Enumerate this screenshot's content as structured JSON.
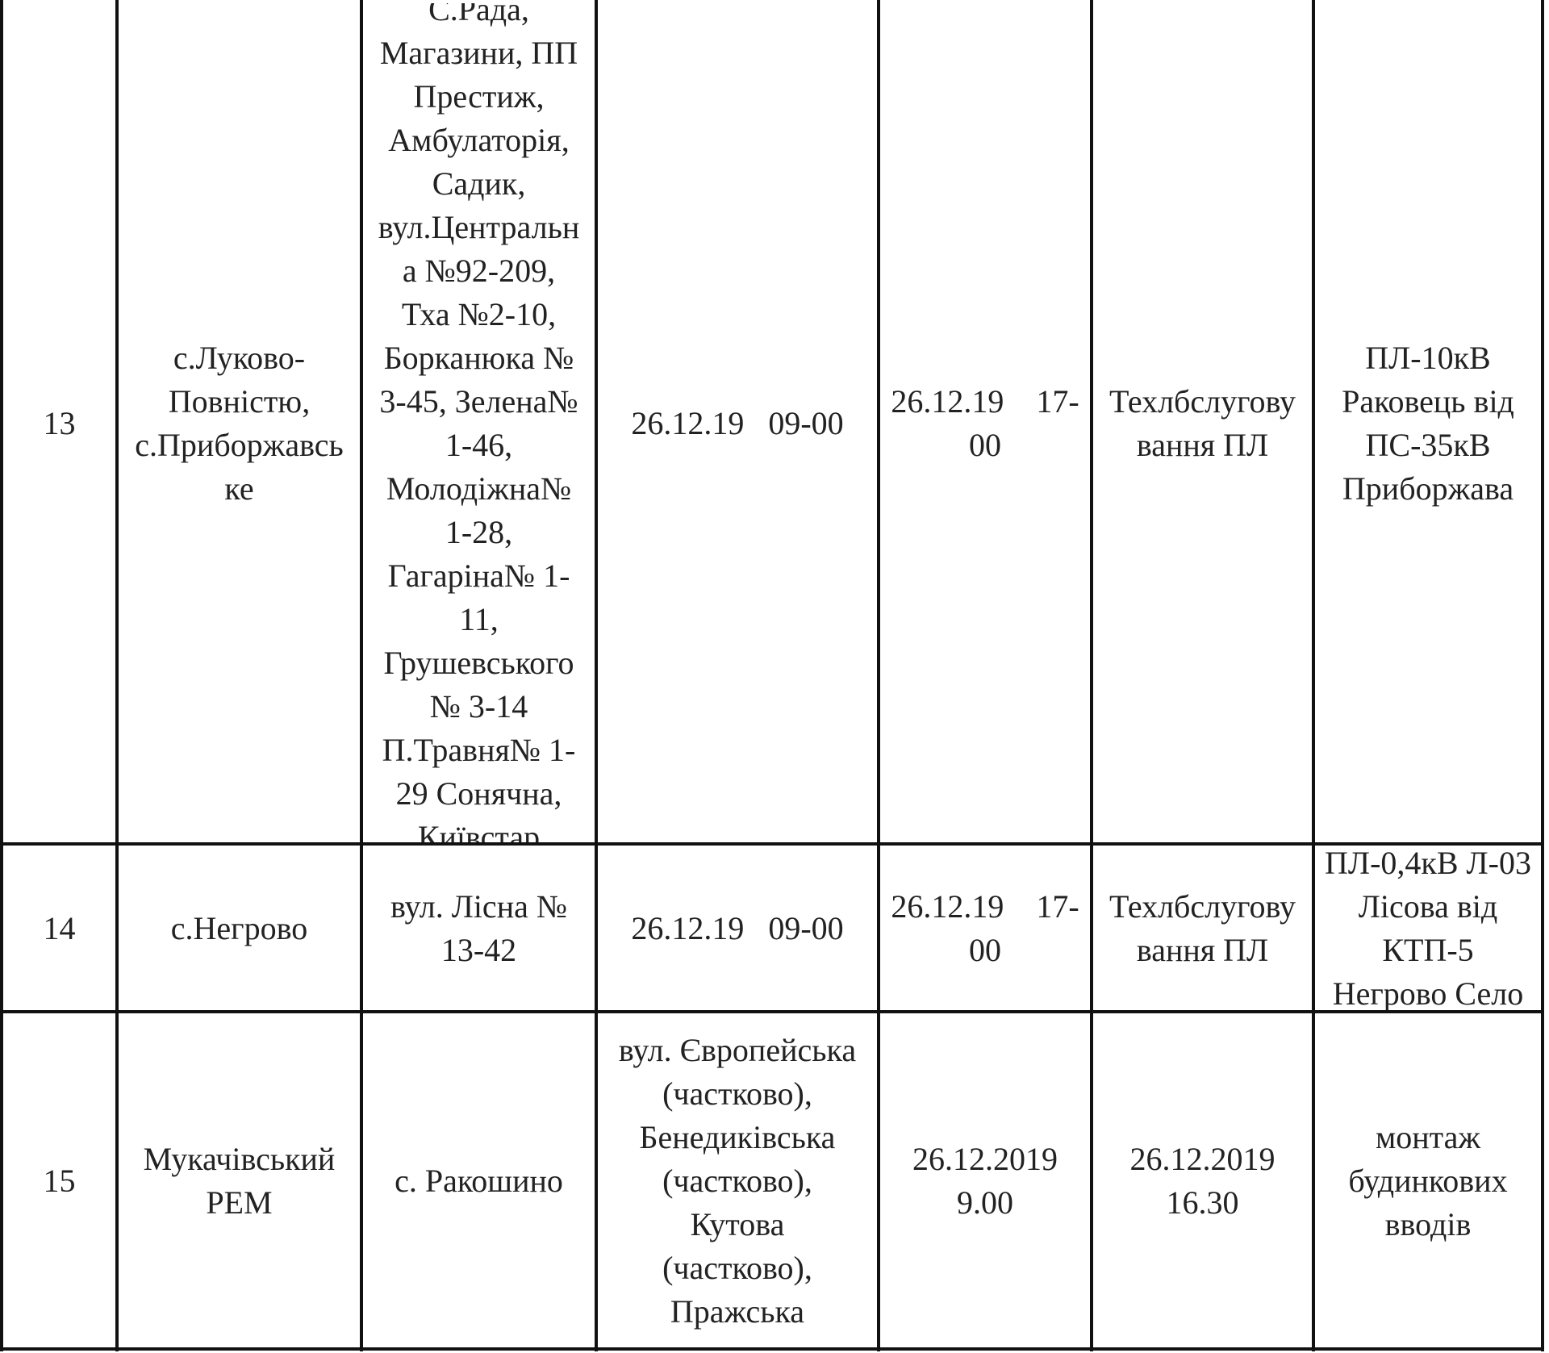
{
  "table": {
    "rows": [
      [
        [
          "13"
        ],
        [
          "с.Луково-",
          "Повністю,",
          "с.Приборжавсь",
          "ке"
        ],
        [
          "С.Рада,",
          "Магазини, ПП",
          "Престиж,",
          "Амбулаторія,",
          "Садик,",
          "вул.Центральн",
          "а №92-209,",
          "Тха №2-10,",
          "Борканюка №",
          "3-45, Зелена№",
          "1-46,",
          "Молодіжна№",
          "1-28,",
          "Гагаріна№ 1-",
          "11,",
          "Грушевського",
          "№ 3-14",
          "П.Травня№ 1-",
          "29 Сонячна,",
          "Київстар"
        ],
        [
          "26.12.19   09-00"
        ],
        [
          "26.12.19    17-",
          "00"
        ],
        [
          "Техлбслугову",
          "вання ПЛ"
        ],
        [
          "ПЛ-10кВ",
          "Раковець від",
          "ПС-35кВ",
          "Приборжава"
        ]
      ],
      [
        [
          "14"
        ],
        [
          "с.Негрово"
        ],
        [
          "вул. Лісна №",
          "13-42"
        ],
        [
          "26.12.19   09-00"
        ],
        [
          "26.12.19    17-",
          "00"
        ],
        [
          "Техлбслугову",
          "вання ПЛ"
        ],
        [
          "ПЛ-0,4кВ Л-03",
          "Лісова від",
          "КТП-5",
          "Негрово Село"
        ]
      ],
      [
        [
          "15"
        ],
        [
          "Мукачівський",
          "РЕМ"
        ],
        [
          "с. Ракошино"
        ],
        [
          "вул. Європейська",
          "(частково),",
          "Бенедиківська",
          "(частково),",
          "Кутова",
          "(частково),",
          "Пражська"
        ],
        [
          "26.12.2019",
          "9.00"
        ],
        [
          "26.12.2019",
          "16.30"
        ],
        [
          "монтаж",
          "будинкових",
          "вводів"
        ]
      ]
    ]
  }
}
